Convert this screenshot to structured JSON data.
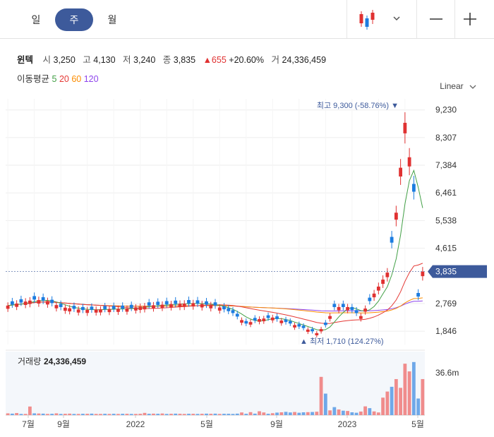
{
  "tabs": [
    {
      "label": "일"
    },
    {
      "label": "주"
    },
    {
      "label": "월"
    }
  ],
  "active_tab": "주",
  "quote": {
    "name": "윈텍",
    "open_label": "시",
    "open": "3,250",
    "high_label": "고",
    "high": "4,130",
    "low_label": "저",
    "low": "3,240",
    "close_label": "종",
    "close": "3,835",
    "change": "▲655",
    "change_pct": "+20.60%",
    "volume_label": "거",
    "volume": "24,336,459"
  },
  "ma": {
    "label": "이동평균",
    "items": [
      {
        "label": "5",
        "color": "#43a047"
      },
      {
        "label": "20",
        "color": "#e53935"
      },
      {
        "label": "60",
        "color": "#fb8c00"
      },
      {
        "label": "120",
        "color": "#8e44ec"
      }
    ]
  },
  "scale_label": "Linear",
  "icons": {
    "chart_type": "candlestick-icon",
    "dropdown": "chevron-down-icon",
    "zoom_out": "minus-icon",
    "zoom_in": "plus-icon"
  },
  "colors": {
    "up": "#e03131",
    "down": "#1c7ce0",
    "accent": "#3d5a9b",
    "up_volume": "#f08c8c",
    "down_volume": "#6fa8e8"
  },
  "chart_data": {
    "type": "candlestick",
    "y_ticks": [
      "9,230",
      "8,307",
      "7,384",
      "6,461",
      "5,538",
      "4,615",
      "3,835",
      "2,769",
      "1,846"
    ],
    "y_tick_values": [
      9230,
      8307,
      7384,
      6461,
      5538,
      4615,
      3835,
      2769,
      1846
    ],
    "ylim": [
      1400,
      9600
    ],
    "current_price": "3,835",
    "current_price_value": 3835,
    "high_annotation": "최고 9,300 (-58.76%) ▼",
    "low_annotation": "▲ 최저 1,710 (124.27%)",
    "x_labels": [
      "7월",
      "9월",
      "2022",
      "5월",
      "9월",
      "2023",
      "5월"
    ],
    "volume_title": "거래량",
    "volume_value": "24,336,459",
    "volume_tick": "36.6m",
    "volume_max": 40,
    "weeks": 95,
    "price_anchors": [
      [
        0,
        2700
      ],
      [
        6,
        2900
      ],
      [
        9,
        2850
      ],
      [
        12,
        2650
      ],
      [
        17,
        2550
      ],
      [
        22,
        2580
      ],
      [
        27,
        2600
      ],
      [
        32,
        2700
      ],
      [
        37,
        2750
      ],
      [
        42,
        2780
      ],
      [
        47,
        2700
      ],
      [
        51,
        2450
      ],
      [
        54,
        2100
      ],
      [
        57,
        2250
      ],
      [
        60,
        2300
      ],
      [
        64,
        2100
      ],
      [
        68,
        1900
      ],
      [
        70,
        1780
      ],
      [
        72,
        2050
      ],
      [
        74,
        2650
      ],
      [
        77,
        2650
      ],
      [
        80,
        2350
      ],
      [
        83,
        3100
      ],
      [
        86,
        3800
      ],
      [
        88,
        5800
      ],
      [
        90,
        8800
      ],
      [
        92,
        6500
      ],
      [
        93,
        3000
      ],
      [
        94,
        3835
      ]
    ],
    "volume_values": [
      1.2,
      1.0,
      1.4,
      0.8,
      0.8,
      5.8,
      1.2,
      1.1,
      1.0,
      0.8,
      0.9,
      1.2,
      0.8,
      0.9,
      1.0,
      0.8,
      0.8,
      0.9,
      0.9,
      1.0,
      0.8,
      0.8,
      0.9,
      0.8,
      0.9,
      0.8,
      0.9,
      0.9,
      0.8,
      0.8,
      0.9,
      1.5,
      0.9,
      1.0,
      0.9,
      1.1,
      0.8,
      0.9,
      1.0,
      0.9,
      0.8,
      0.9,
      0.9,
      0.8,
      0.9,
      1.0,
      0.9,
      1.0,
      0.8,
      0.9,
      0.9,
      0.8,
      1.0,
      1.8,
      0.9,
      2.0,
      1.0,
      2.6,
      1.8,
      0.9,
      1.3,
      1.7,
      1.9,
      2.2,
      1.8,
      2.1,
      1.6,
      1.9,
      2.0,
      2.1,
      2.3,
      25.8,
      14.5,
      3.2,
      5.4,
      3.8,
      3.0,
      2.8,
      1.9,
      1.6,
      2.4,
      5.9,
      4.7,
      2.5,
      1.8,
      11.8,
      15.9,
      19.1,
      24.3,
      18.4,
      34.7,
      29.5,
      35.8,
      11.2,
      24.3
    ],
    "volume_up": [
      true,
      false,
      true,
      false,
      true,
      true,
      false,
      true,
      false,
      true,
      false,
      true,
      false,
      true,
      true,
      false,
      true,
      false,
      true,
      false,
      true,
      true,
      false,
      true,
      false,
      true,
      false,
      true,
      false,
      true,
      true,
      true,
      false,
      true,
      false,
      true,
      false,
      true,
      false,
      true,
      true,
      false,
      true,
      false,
      true,
      false,
      true,
      false,
      true,
      false,
      false,
      false,
      false,
      true,
      false,
      true,
      false,
      true,
      true,
      false,
      true,
      false,
      true,
      false,
      false,
      true,
      false,
      false,
      true,
      false,
      true,
      true,
      false,
      true,
      false,
      true,
      false,
      true,
      false,
      false,
      true,
      true,
      false,
      true,
      true,
      true,
      true,
      false,
      true,
      true,
      true,
      true,
      false,
      false,
      true
    ]
  }
}
